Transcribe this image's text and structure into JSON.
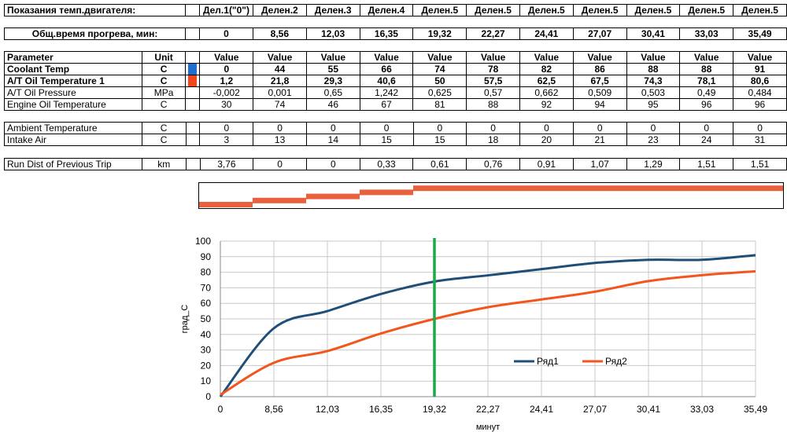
{
  "header": {
    "title": "Показания темп.двигателя:",
    "divisions": [
      "Дел.1(\"0\")",
      "Делен.2",
      "Делен.3",
      "Делен.4",
      "Делен.5",
      "Делен.5",
      "Делен.5",
      "Делен.5",
      "Делен.5",
      "Делен.5",
      "Делен.5"
    ],
    "warmup_label": "Общ.время прогрева, мин:",
    "warmup_times": [
      "0",
      "8,56",
      "12,03",
      "16,35",
      "19,32",
      "22,27",
      "24,41",
      "27,07",
      "30,41",
      "33,03",
      "35,49"
    ]
  },
  "params_table": {
    "headers": {
      "parameter": "Parameter",
      "unit": "Unit",
      "value": "Value"
    },
    "rows": [
      {
        "name": "Coolant Temp",
        "unit": "C",
        "bold": true,
        "swatch": "#1f6fd1",
        "values": [
          "0",
          "44",
          "55",
          "66",
          "74",
          "78",
          "82",
          "86",
          "88",
          "88",
          "91"
        ]
      },
      {
        "name": "A/T Oil Temperature 1",
        "unit": "C",
        "bold": true,
        "swatch": "#f2461c",
        "values": [
          "1,2",
          "21,8",
          "29,3",
          "40,6",
          "50",
          "57,5",
          "62,5",
          "67,5",
          "74,3",
          "78,1",
          "80,6"
        ]
      },
      {
        "name": "A/T Oil Pressure",
        "unit": "MPa",
        "bold": false,
        "swatch": "",
        "values": [
          "-0,002",
          "0,001",
          "0,65",
          "1,242",
          "0,625",
          "0,57",
          "0,662",
          "0,509",
          "0,503",
          "0,49",
          "0,484"
        ]
      },
      {
        "name": "Engine Oil Temperature",
        "unit": "C",
        "bold": false,
        "swatch": "",
        "values": [
          "30",
          "74",
          "46",
          "67",
          "81",
          "88",
          "92",
          "94",
          "95",
          "96",
          "96"
        ]
      }
    ]
  },
  "env_table": {
    "rows": [
      {
        "name": "Ambient Temperature",
        "unit": "C",
        "values": [
          "0",
          "0",
          "0",
          "0",
          "0",
          "0",
          "0",
          "0",
          "0",
          "0",
          "0"
        ]
      },
      {
        "name": "Intake Air",
        "unit": "C",
        "values": [
          "3",
          "13",
          "14",
          "15",
          "15",
          "18",
          "20",
          "21",
          "23",
          "24",
          "31"
        ]
      }
    ]
  },
  "trip_table": {
    "rows": [
      {
        "name": "Run Dist of Previous Trip",
        "unit": "km",
        "values": [
          "3,76",
          "0",
          "0",
          "0,33",
          "0,61",
          "0,76",
          "0,91",
          "1,07",
          "1,29",
          "1,51",
          "1,51"
        ]
      }
    ]
  },
  "progress_strip": {
    "color": "#e8603c",
    "levels": [
      0,
      1,
      2,
      3,
      4,
      4,
      4,
      4,
      4,
      4,
      4
    ],
    "max_level": 5
  },
  "chart_data": {
    "type": "line",
    "categories": [
      "0",
      "8,56",
      "12,03",
      "16,35",
      "19,32",
      "22,27",
      "24,41",
      "27,07",
      "30,41",
      "33,03",
      "35,49"
    ],
    "series": [
      {
        "name": "Ряд1",
        "color": "#1f4e79",
        "values": [
          0,
          44,
          55,
          66,
          74,
          78,
          82,
          86,
          88,
          88,
          91
        ]
      },
      {
        "name": "Ряд2",
        "color": "#f2561d",
        "values": [
          1.2,
          21.8,
          29.3,
          40.6,
          50,
          57.5,
          62.5,
          67.5,
          74.3,
          78.1,
          80.6
        ]
      }
    ],
    "title": "",
    "xlabel": "минут",
    "ylabel": "град_С",
    "ylim": [
      0,
      100
    ],
    "yticks": [
      0,
      10,
      20,
      30,
      40,
      50,
      60,
      70,
      80,
      90,
      100
    ],
    "grid": true,
    "legend": "right",
    "marker_line": {
      "x": "19,32",
      "color": "#1aaa4a"
    }
  }
}
